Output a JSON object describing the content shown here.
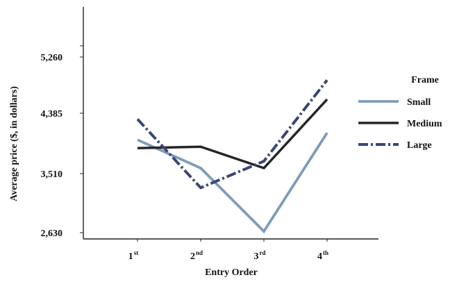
{
  "chart_data": {
    "type": "line",
    "title": "",
    "xlabel": "Entry Order",
    "ylabel": "Average price ($, in dollars)",
    "categories": [
      {
        "base": "1",
        "sup": "st"
      },
      {
        "base": "2",
        "sup": "nd"
      },
      {
        "base": "3",
        "sup": "rd"
      },
      {
        "base": "4",
        "sup": "th"
      }
    ],
    "yticks": [
      2630,
      3510,
      4385,
      5260
    ],
    "ytick_labels": [
      "2,630",
      "3,510",
      "4,385",
      "5,260"
    ],
    "ylim": [
      2500,
      6000
    ],
    "grid": false,
    "legend": {
      "title": "Frame",
      "placement": "right"
    },
    "series": [
      {
        "name": "Small",
        "color": "#7f9bb9",
        "style": "solid",
        "values": [
          4000,
          3590,
          2650,
          4100
        ]
      },
      {
        "name": "Medium",
        "color": "#252525",
        "style": "solid",
        "values": [
          3880,
          3900,
          3590,
          4600
        ]
      },
      {
        "name": "Large",
        "color": "#3a4577",
        "style": "dash-dot",
        "values": [
          4300,
          3300,
          3690,
          4900
        ]
      }
    ]
  }
}
